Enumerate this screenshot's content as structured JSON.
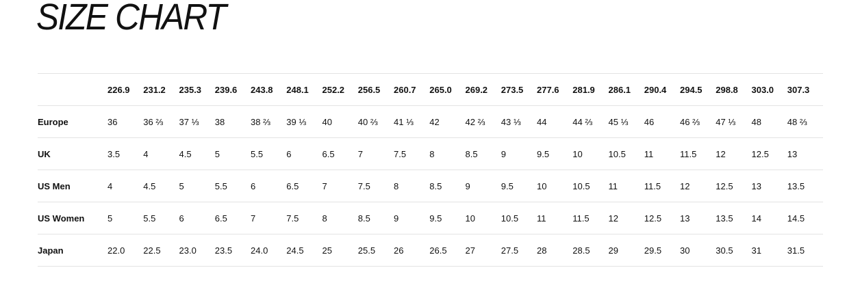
{
  "header": {
    "title": "SIZE CHART"
  },
  "table": {
    "columns": [
      "226.9",
      "231.2",
      "235.3",
      "239.6",
      "243.8",
      "248.1",
      "252.2",
      "256.5",
      "260.7",
      "265.0",
      "269.2",
      "273.5",
      "277.6",
      "281.9",
      "286.1",
      "290.4",
      "294.5",
      "298.8",
      "303.0",
      "307.3"
    ],
    "rows": [
      {
        "label": "Europe",
        "values": [
          "36",
          "36 ⅔",
          "37 ⅓",
          "38",
          "38 ⅔",
          "39 ⅓",
          "40",
          "40 ⅔",
          "41 ⅓",
          "42",
          "42 ⅔",
          "43 ⅓",
          "44",
          "44 ⅔",
          "45 ⅓",
          "46",
          "46 ⅔",
          "47 ⅓",
          "48",
          "48 ⅔"
        ]
      },
      {
        "label": "UK",
        "values": [
          "3.5",
          "4",
          "4.5",
          "5",
          "5.5",
          "6",
          "6.5",
          "7",
          "7.5",
          "8",
          "8.5",
          "9",
          "9.5",
          "10",
          "10.5",
          "11",
          "11.5",
          "12",
          "12.5",
          "13"
        ]
      },
      {
        "label": "US Men",
        "values": [
          "4",
          "4.5",
          "5",
          "5.5",
          "6",
          "6.5",
          "7",
          "7.5",
          "8",
          "8.5",
          "9",
          "9.5",
          "10",
          "10.5",
          "11",
          "11.5",
          "12",
          "12.5",
          "13",
          "13.5"
        ]
      },
      {
        "label": "US Women",
        "values": [
          "5",
          "5.5",
          "6",
          "6.5",
          "7",
          "7.5",
          "8",
          "8.5",
          "9",
          "9.5",
          "10",
          "10.5",
          "11",
          "11.5",
          "12",
          "12.5",
          "13",
          "13.5",
          "14",
          "14.5"
        ]
      },
      {
        "label": "Japan",
        "values": [
          "22.0",
          "22.5",
          "23.0",
          "23.5",
          "24.0",
          "24.5",
          "25",
          "25.5",
          "26",
          "26.5",
          "27",
          "27.5",
          "28",
          "28.5",
          "29",
          "29.5",
          "30",
          "30.5",
          "31",
          "31.5"
        ]
      }
    ]
  }
}
